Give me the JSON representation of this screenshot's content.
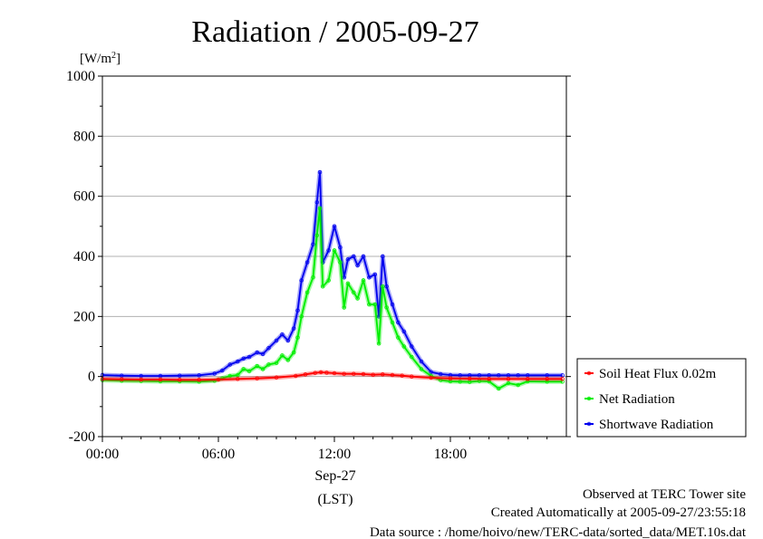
{
  "chart_data": {
    "type": "line",
    "title": "Radiation / 2005-09-27",
    "ylabel": "[W/m2]",
    "y_unit_base": "[W/m",
    "y_unit_sup": "2",
    "y_unit_close": "]",
    "ylim": [
      -200,
      1000
    ],
    "yticks": [
      -200,
      0,
      200,
      400,
      600,
      800,
      1000
    ],
    "xlim": [
      0,
      24
    ],
    "xticks": [
      0,
      6,
      12,
      18
    ],
    "xtick_labels": [
      "00:00",
      "06:00",
      "12:00",
      "18:00"
    ],
    "x_date_label": "Sep-27",
    "xlabel": "(LST)",
    "grid": true,
    "legend_position": "right",
    "series": [
      {
        "name": "Soil Heat Flux 0.02m",
        "color": "#ff0000",
        "x": [
          0,
          1,
          2,
          3,
          4,
          5,
          6,
          7,
          8,
          9,
          10,
          10.5,
          11,
          11.3,
          11.6,
          12,
          12.5,
          13,
          13.5,
          14,
          14.5,
          15,
          15.5,
          16,
          17,
          18,
          19,
          20,
          21,
          22,
          23,
          23.8
        ],
        "y": [
          -8,
          -9,
          -10,
          -10,
          -11,
          -11,
          -10,
          -8,
          -6,
          -3,
          2,
          7,
          12,
          14,
          13,
          11,
          9,
          9,
          8,
          6,
          7,
          5,
          3,
          0,
          -4,
          -6,
          -7,
          -8,
          -8,
          -8,
          -8,
          -8
        ]
      },
      {
        "name": "Net Radiation",
        "color": "#00ee00",
        "x": [
          0,
          1,
          2,
          3,
          4,
          5,
          5.8,
          6.2,
          6.6,
          7,
          7.3,
          7.6,
          8,
          8.3,
          8.6,
          9,
          9.3,
          9.6,
          9.9,
          10.1,
          10.3,
          10.6,
          10.9,
          11.1,
          11.25,
          11.4,
          11.7,
          12,
          12.3,
          12.5,
          12.7,
          13,
          13.2,
          13.5,
          13.8,
          14.1,
          14.3,
          14.5,
          14.7,
          15,
          15.3,
          15.6,
          16,
          16.5,
          17,
          17.5,
          18,
          18.5,
          19,
          19.5,
          20,
          20.5,
          21,
          21.5,
          22,
          23,
          23.8
        ],
        "y": [
          -12,
          -14,
          -15,
          -16,
          -16,
          -17,
          -14,
          -6,
          2,
          5,
          25,
          18,
          35,
          25,
          40,
          45,
          70,
          55,
          80,
          130,
          200,
          280,
          330,
          470,
          560,
          300,
          320,
          420,
          380,
          230,
          310,
          280,
          260,
          320,
          240,
          240,
          110,
          300,
          230,
          180,
          130,
          100,
          65,
          25,
          2,
          -12,
          -16,
          -17,
          -18,
          -15,
          -16,
          -40,
          -22,
          -28,
          -16,
          -17,
          -17
        ]
      },
      {
        "name": "Shortwave Radiation",
        "color": "#0000ee",
        "x": [
          0,
          1,
          2,
          3,
          4,
          5,
          5.8,
          6.2,
          6.6,
          7,
          7.3,
          7.6,
          8,
          8.3,
          8.6,
          9,
          9.3,
          9.6,
          9.9,
          10.1,
          10.3,
          10.6,
          10.9,
          11.1,
          11.25,
          11.4,
          11.7,
          12,
          12.3,
          12.5,
          12.7,
          13,
          13.2,
          13.5,
          13.8,
          14.1,
          14.3,
          14.5,
          14.7,
          15,
          15.3,
          15.6,
          16,
          16.5,
          17,
          17.5,
          18,
          18.5,
          19,
          19.5,
          20,
          20.5,
          21,
          21.5,
          22,
          23,
          23.8
        ],
        "y": [
          5,
          3,
          2,
          2,
          3,
          4,
          10,
          20,
          40,
          50,
          60,
          65,
          80,
          75,
          95,
          120,
          140,
          120,
          160,
          220,
          320,
          380,
          440,
          580,
          680,
          380,
          420,
          500,
          430,
          330,
          390,
          400,
          370,
          400,
          330,
          340,
          200,
          400,
          300,
          240,
          180,
          150,
          100,
          50,
          15,
          8,
          5,
          4,
          4,
          4,
          4,
          4,
          4,
          4,
          4,
          4,
          4
        ]
      }
    ]
  },
  "footer": {
    "line1": "Observed at TERC Tower site",
    "line2": "Created Automatically at 2005-09-27/23:55:18",
    "line3": "Data source : /home/hoivo/new/TERC-data/sorted_data/MET.10s.dat"
  },
  "colors": {
    "grid": "#b0b0b0",
    "axis": "#000000"
  }
}
